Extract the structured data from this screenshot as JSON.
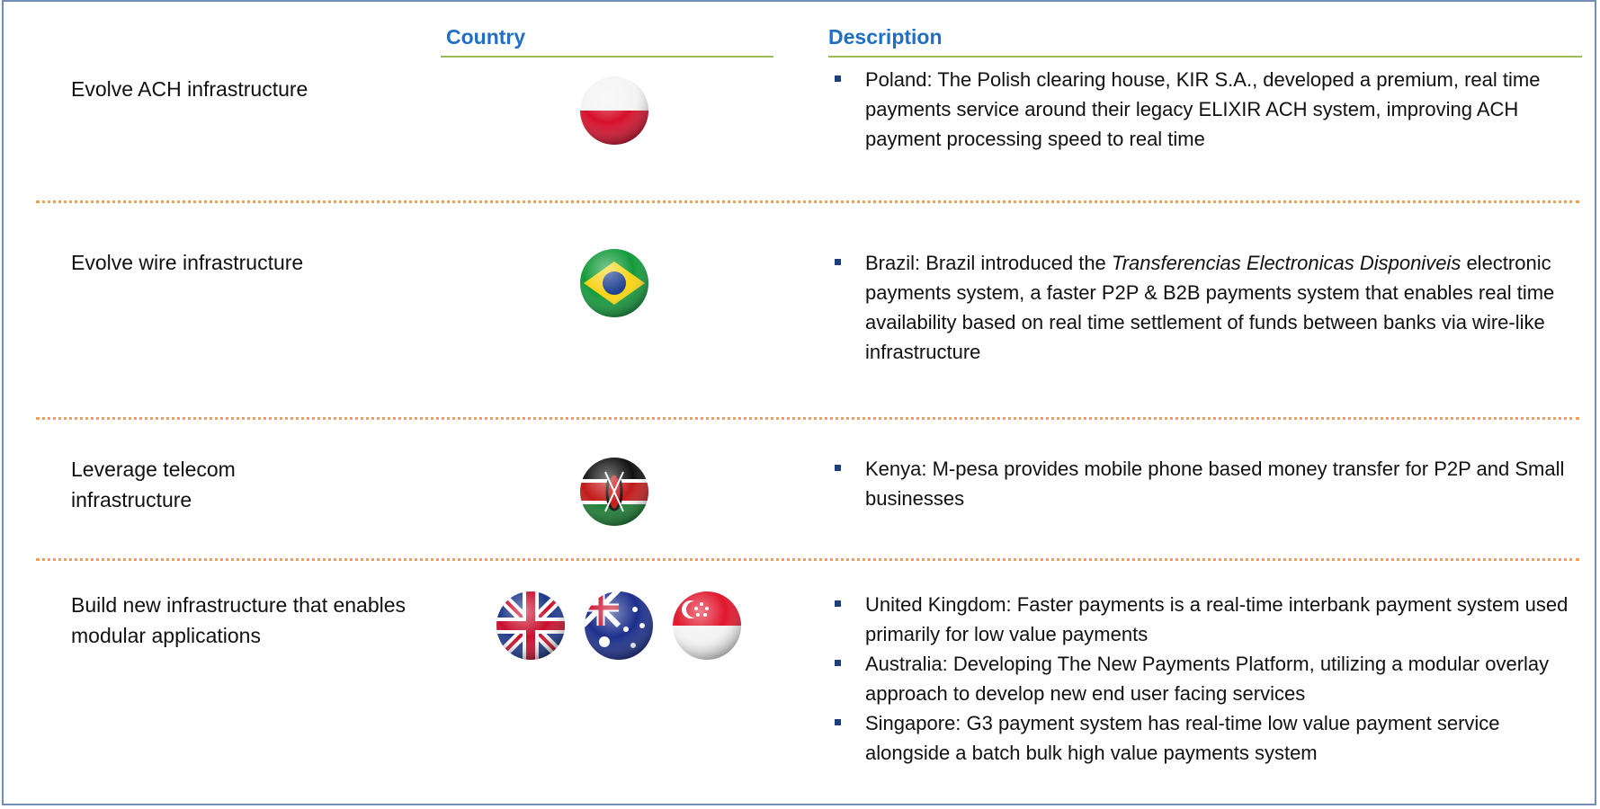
{
  "header": {
    "country": "Country",
    "description": "Description"
  },
  "rows": [
    {
      "approach": "Evolve ACH infrastructure",
      "bullets": [
        "Poland: The Polish clearing house, KIR S.A., developed a premium, real time payments service around their legacy ELIXIR ACH system, improving ACH payment processing speed to real time"
      ]
    },
    {
      "approach": "Evolve wire infrastructure",
      "bullets": [
        {
          "text": "Brazil: Brazil introduced the ",
          "emphasis": "Transferencias Electronicas Disponiveis",
          "rest": " electronic payments system, a faster P2P & B2B payments system that enables real time availability based on real time settlement of funds between banks via wire-like infrastructure"
        }
      ]
    },
    {
      "approach": "Leverage telecom infrastructure",
      "bullets": [
        "Kenya: M-pesa provides mobile phone based money transfer for P2P and Small businesses"
      ]
    },
    {
      "approach": "Build new infrastructure that enables modular applications",
      "bullets": [
        "United Kingdom: Faster payments is a real-time interbank payment system used primarily for low value payments",
        "Australia: Developing The New Payments Platform, utilizing a modular overlay approach to develop new end user facing services",
        "Singapore: G3 payment system has real-time low value payment service alongside a batch bulk high value payments system"
      ]
    }
  ]
}
